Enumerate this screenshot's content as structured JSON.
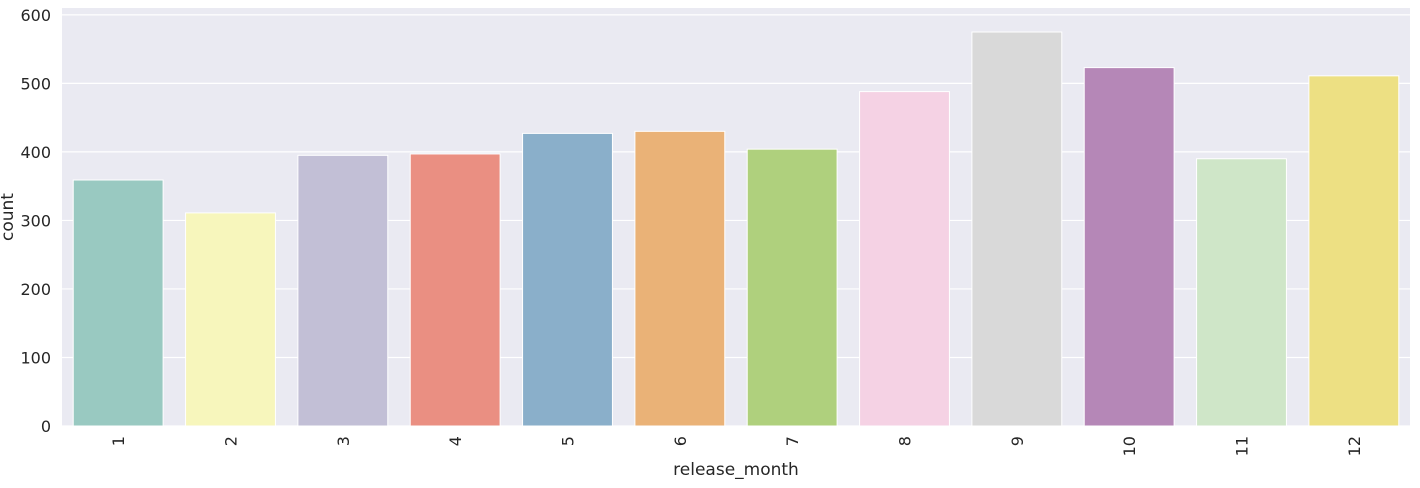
{
  "chart_data": {
    "type": "bar",
    "title": "",
    "xlabel": "release_month",
    "ylabel": "count",
    "categories": [
      "1",
      "2",
      "3",
      "4",
      "5",
      "6",
      "7",
      "8",
      "9",
      "10",
      "11",
      "12"
    ],
    "values": [
      359,
      311,
      395,
      397,
      427,
      430,
      404,
      488,
      575,
      523,
      390,
      511
    ],
    "colors": [
      "#99c9c1",
      "#f7f6bc",
      "#c2bfd6",
      "#ea8f82",
      "#8aafca",
      "#eab277",
      "#afd07d",
      "#f5d2e4",
      "#d9d9d9",
      "#b587b7",
      "#cfe6c8",
      "#ede083"
    ],
    "ylim": [
      0,
      610
    ],
    "yticks": [
      0,
      100,
      200,
      300,
      400,
      500,
      600
    ],
    "grid": true,
    "x_tick_rotation": -90,
    "background": "#eaeaf2"
  }
}
